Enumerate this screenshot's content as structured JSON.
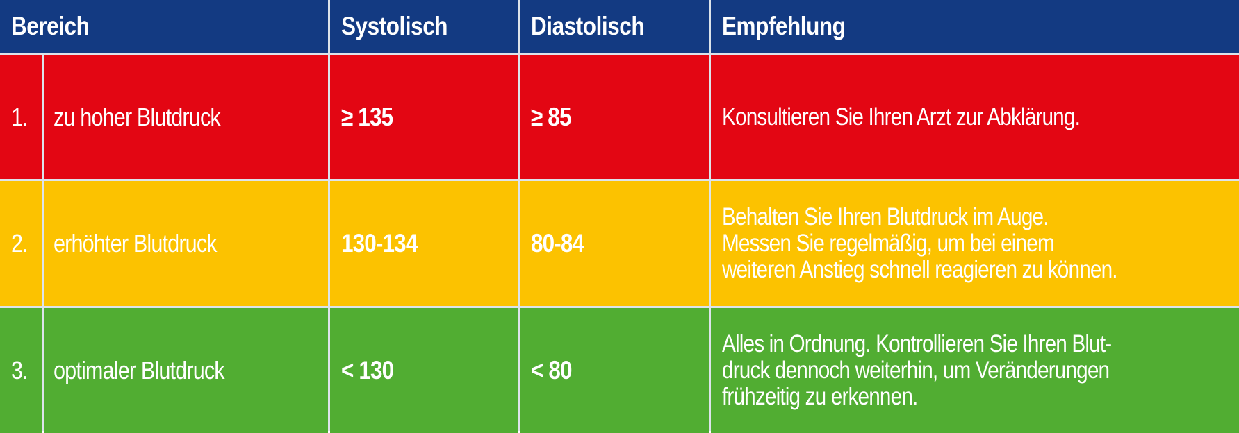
{
  "header": {
    "bereich": "Bereich",
    "systolisch": "Systolisch",
    "diastolisch": "Diastolisch",
    "empfehlung": "Empfehlung"
  },
  "rows": [
    {
      "number": "1.",
      "label": "zu hoher Blutdruck",
      "systolisch": "≥ 135",
      "diastolisch": "≥ 85",
      "empfehlung": [
        "Konsultieren Sie Ihren Arzt zur Abklärung."
      ],
      "color": "#e30613"
    },
    {
      "number": "2.",
      "label": "erhöhter Blutdruck",
      "systolisch": "130-134",
      "diastolisch": "80-84",
      "empfehlung": [
        "Behalten Sie Ihren Blutdruck im Auge.",
        "Messen Sie regelmäßig, um bei einem",
        "weiteren Anstieg schnell reagieren zu können."
      ],
      "color": "#fcc200"
    },
    {
      "number": "3.",
      "label": "optimaler Blutdruck",
      "systolisch": "< 130",
      "diastolisch": "< 80",
      "empfehlung": [
        "Alles in Ordnung. Kontrollieren Sie Ihren Blut-",
        "druck dennoch weiterhin, um Veränderungen",
        "frühzeitig zu erkennen."
      ],
      "color": "#51ad32"
    }
  ],
  "colors": {
    "header": "#133a82",
    "grid": "#dde3ea"
  }
}
